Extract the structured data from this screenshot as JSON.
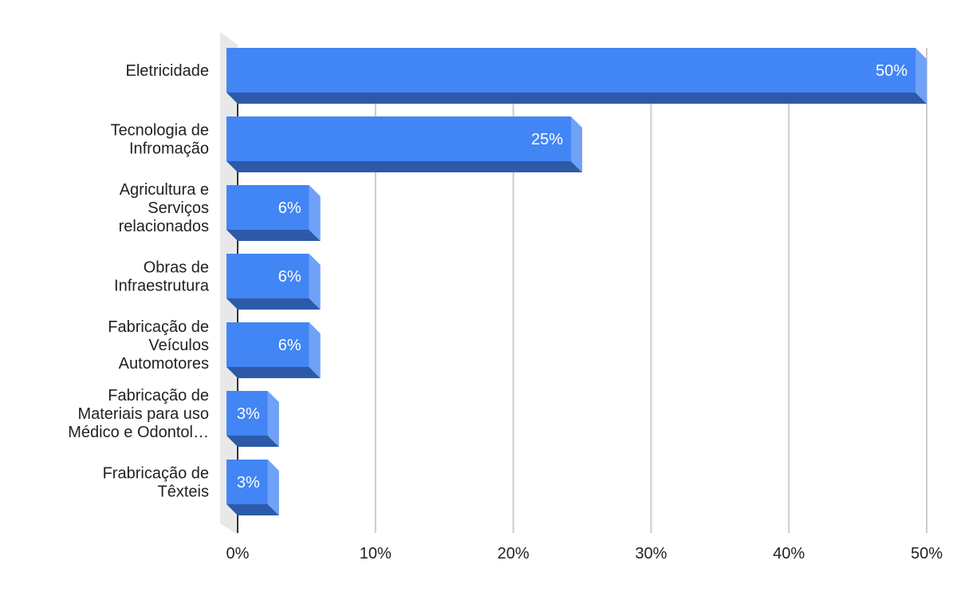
{
  "chart_data": {
    "type": "bar",
    "orientation": "horizontal",
    "style": "3d",
    "categories": [
      "Eletricidade",
      "Tecnologia de Infromação",
      "Agricultura e Serviços relacionados",
      "Obras de Infraestrutura",
      "Fabricação de Veículos Automotores",
      "Fabricação de Materiais para uso Médico e Odontol…",
      "Frabricação de Têxteis"
    ],
    "category_lines": [
      [
        "Eletricidade"
      ],
      [
        "Tecnologia de",
        "Infromação"
      ],
      [
        "Agricultura e",
        "Serviços",
        "relacionados"
      ],
      [
        "Obras de",
        "Infraestrutura"
      ],
      [
        "Fabricação de",
        "Veículos",
        "Automotores"
      ],
      [
        "Fabricação de",
        "Materiais para uso",
        "Médico e Odontol…"
      ],
      [
        "Frabricação de",
        "Têxteis"
      ]
    ],
    "values": [
      50,
      25,
      6,
      6,
      6,
      3,
      3
    ],
    "data_labels": [
      "50%",
      "25%",
      "6%",
      "6%",
      "6%",
      "3%",
      "3%"
    ],
    "xlim": [
      0,
      50
    ],
    "x_ticks": [
      0,
      10,
      20,
      30,
      40,
      50
    ],
    "x_tick_labels": [
      "0%",
      "10%",
      "20%",
      "30%",
      "40%",
      "50%"
    ],
    "grid": true,
    "colors": {
      "bar_front": "#4285f4",
      "bar_bottom": "#2d5aa8",
      "bar_side": "#6fa1f7",
      "grid": "#cccccc",
      "wall": "#e8e8e8",
      "axis": "#333333"
    }
  }
}
